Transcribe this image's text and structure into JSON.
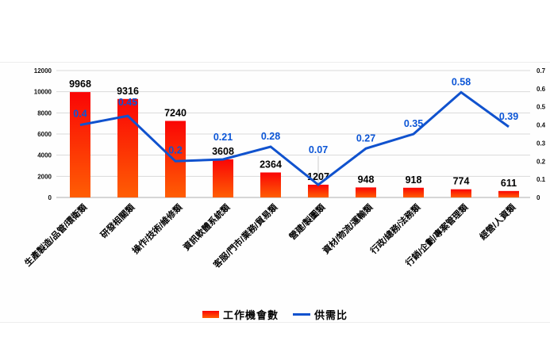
{
  "legend": {
    "bar_label": "工作機會數",
    "line_label": "供需比"
  },
  "chart_data": {
    "type": "bar+line",
    "title": "",
    "categories": [
      "生產製造/品管/環衛類",
      "研發相關類",
      "操作/技術/維修類",
      "資訊軟體系統類",
      "客服/門市/業務/貿易類",
      "營建/製圖類",
      "資材/物流/運輸類",
      "行政/總務/法務類",
      "行銷/企劃/專案管理類",
      "經營/人資類"
    ],
    "series": [
      {
        "name": "工作機會數",
        "type": "bar",
        "axis": "left",
        "values": [
          9968,
          9316,
          7240,
          3608,
          2364,
          1207,
          948,
          918,
          774,
          611
        ]
      },
      {
        "name": "供需比",
        "type": "line",
        "axis": "right",
        "values": [
          0.4,
          0.45,
          0.2,
          0.21,
          0.28,
          0.07,
          0.27,
          0.35,
          0.58,
          0.39
        ]
      }
    ],
    "left_axis": {
      "min": 0,
      "max": 12000,
      "step": 2000,
      "tick_labels": [
        "0",
        "2000",
        "4000",
        "6000",
        "8000",
        "10000",
        "12000"
      ]
    },
    "right_axis": {
      "min": 0,
      "max": 0.7,
      "step": 0.1,
      "tick_labels": [
        "0",
        "0.1",
        "0.2",
        "0.3",
        "0.4",
        "0.5",
        "0.6",
        "0.7"
      ]
    },
    "grid": true,
    "legend_position": "bottom",
    "colors": {
      "bar_top": "#fa0505",
      "bar_bottom": "#ff5e04",
      "line": "#1052ce",
      "line_label": "#0b55d6",
      "bar_label": "#000000",
      "grid": "#d9d9d9",
      "baseline": "#aeaeae",
      "tick_text": "#111111"
    }
  }
}
